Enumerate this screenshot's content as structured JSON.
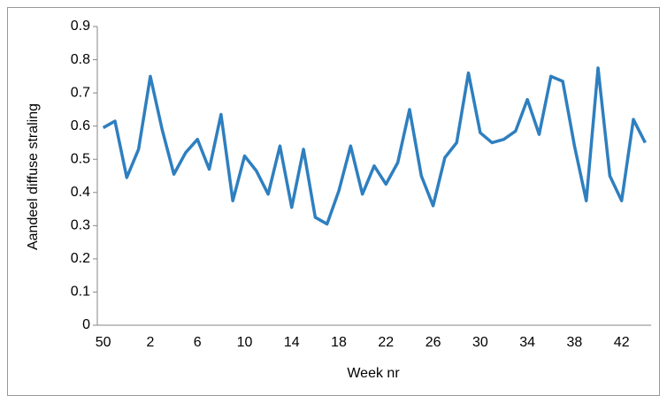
{
  "chart_data": {
    "type": "line",
    "x_label": "Week nr",
    "y_label": "Aandeel diffuse straling",
    "categories": [
      "50",
      null,
      null,
      null,
      "2",
      null,
      null,
      null,
      "6",
      null,
      null,
      null,
      "10",
      null,
      null,
      null,
      "14",
      null,
      null,
      null,
      "18",
      null,
      null,
      null,
      "22",
      null,
      null,
      null,
      "26",
      null,
      null,
      null,
      "30",
      null,
      null,
      null,
      "34",
      null,
      null,
      null,
      "38",
      null,
      null,
      null,
      "42",
      null,
      null
    ],
    "series": [
      {
        "name": "Aandeel diffuse straling",
        "color": "#2e7fbf",
        "values": [
          0.595,
          0.615,
          0.445,
          0.53,
          0.75,
          0.59,
          0.455,
          0.52,
          0.56,
          0.47,
          0.635,
          0.375,
          0.51,
          0.465,
          0.395,
          0.54,
          0.355,
          0.53,
          0.325,
          0.305,
          0.405,
          0.54,
          0.395,
          0.48,
          0.425,
          0.49,
          0.65,
          0.45,
          0.36,
          0.505,
          0.55,
          0.76,
          0.58,
          0.55,
          0.56,
          0.585,
          0.68,
          0.575,
          0.75,
          0.735,
          0.54,
          0.375,
          0.775,
          0.45,
          0.375,
          0.62,
          0.55
        ]
      }
    ],
    "ylim": [
      0,
      0.9
    ],
    "yticks": [
      0,
      0.1,
      0.2,
      0.3,
      0.4,
      0.5,
      0.6,
      0.7,
      0.8,
      0.9
    ],
    "grid": false
  }
}
